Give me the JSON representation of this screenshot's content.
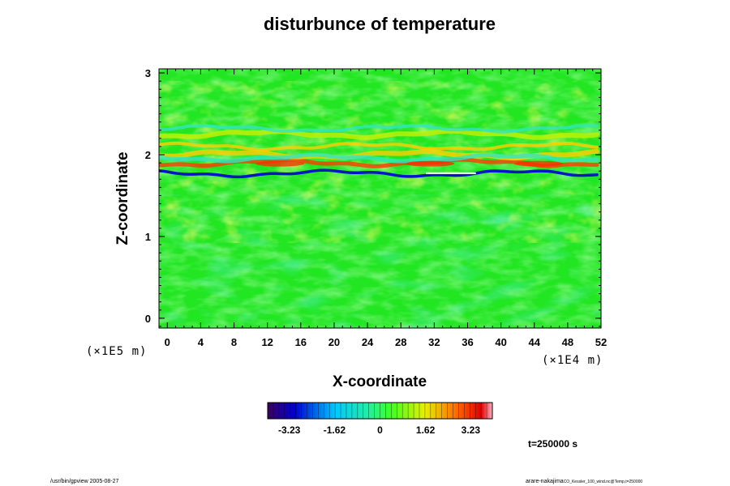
{
  "chart_data": {
    "type": "heatmap",
    "title": "disturbunce of temperature",
    "xlabel": "X-coordinate",
    "ylabel": "Z-coordinate",
    "x_unit": "(×1E4 m)",
    "y_unit": "(×1E5 m)",
    "x_ticks": [
      "0",
      "4",
      "8",
      "12",
      "16",
      "20",
      "24",
      "28",
      "32",
      "36",
      "40",
      "44",
      "48",
      "52"
    ],
    "y_ticks": [
      "0",
      "1",
      "2",
      "3"
    ],
    "xlim": [
      -1,
      52
    ],
    "ylim": [
      -0.12,
      3.05
    ],
    "field_features": [
      {
        "kind": "cold_band",
        "z": 1.77,
        "value": -3.23,
        "note": "thin strong negative layer"
      },
      {
        "kind": "warm_band",
        "z": 1.9,
        "value": 3.23,
        "note": "strong positive layer"
      },
      {
        "kind": "warm_band",
        "z": 2.0,
        "value": 1.62
      },
      {
        "kind": "warm_band",
        "z": 2.1,
        "value": 1.3
      },
      {
        "kind": "cold_band",
        "z": 1.96,
        "value": -1.0
      },
      {
        "kind": "warm_band",
        "z": 2.25,
        "value": 0.9
      },
      {
        "kind": "cold_band",
        "z": 2.32,
        "value": -0.6
      }
    ],
    "colorbar": {
      "ticks": [
        "-3.23",
        "-1.62",
        "0",
        "1.62",
        "3.23"
      ],
      "min": -4.0,
      "max": 4.0
    },
    "time_label": "t=250000 s"
  },
  "footer": {
    "left": "/usr/bin/gpview 2005-08-27",
    "right": "arare-nakajima",
    "right_small": "CO_Kessler_100_wind.nc@Temp,t=250000"
  },
  "colors": {
    "background_field": "#22e622",
    "cold": "#0000c8",
    "warm": "#ff2000"
  }
}
